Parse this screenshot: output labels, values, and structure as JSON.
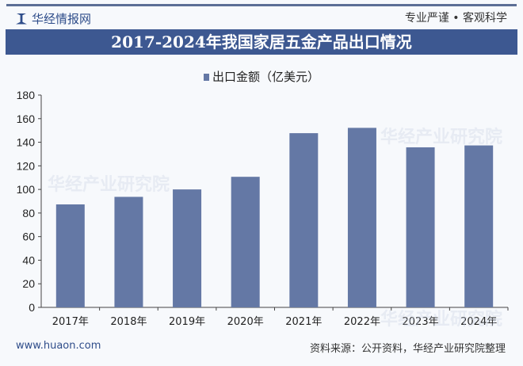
{
  "header": {
    "logo_text": "华经情报网",
    "slogan": "专业严谨 • 客观科学"
  },
  "footer": {
    "website": "www.huaon.com",
    "source": "资料来源：公开资料，华经产业研究院整理"
  },
  "watermark": "华经产业研究院",
  "chart_data": {
    "type": "bar",
    "title": "2017-2024年我国家居五金产品出口情况",
    "categories": [
      "2017年",
      "2018年",
      "2019年",
      "2020年",
      "2021年",
      "2022年",
      "2023年",
      "2024年"
    ],
    "series": [
      {
        "name": "出口金额（亿美元）",
        "values": [
          87.3,
          93.7,
          100,
          110.7,
          147.7,
          152.2,
          135.7,
          137.3
        ],
        "color": "#6478a5"
      }
    ],
    "ylim": [
      0,
      180
    ],
    "yticks": [
      0,
      20,
      40,
      60,
      80,
      100,
      120,
      140,
      160,
      180
    ],
    "grid": false,
    "legend": "top-center"
  }
}
